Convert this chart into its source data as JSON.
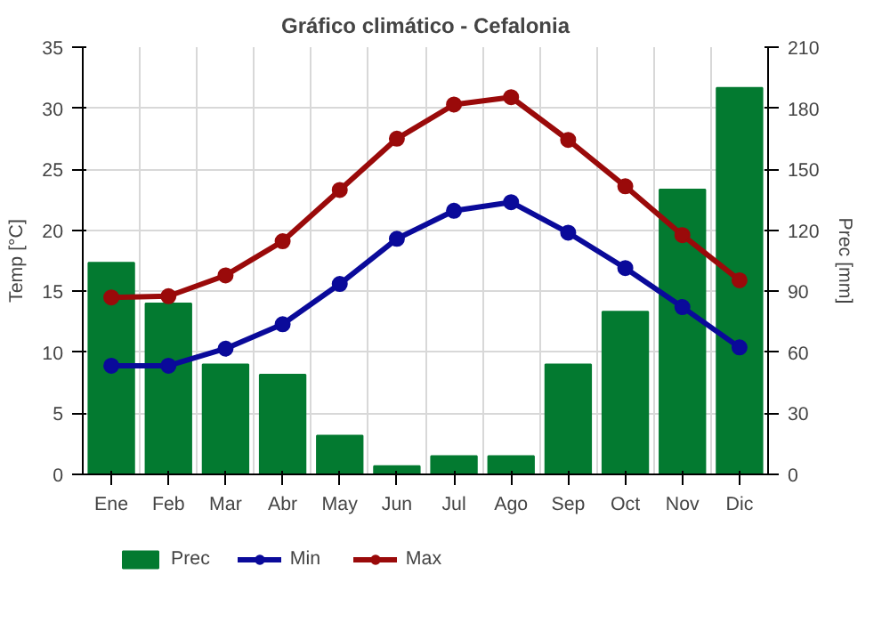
{
  "chart_data": {
    "type": "bar",
    "title": "Gráfico climático - Cefalonia",
    "ylabel": "Temp [°C]",
    "y2label": "Prec [mm]",
    "categories": [
      "Ene",
      "Feb",
      "Mar",
      "Abr",
      "May",
      "Jun",
      "Jul",
      "Ago",
      "Sep",
      "Oct",
      "Nov",
      "Dic"
    ],
    "series": [
      {
        "name": "Prec",
        "axis": "y2",
        "color": "#037a30",
        "values": [
          104,
          84,
          54,
          49,
          19,
          4,
          9,
          9,
          54,
          80,
          140,
          190
        ]
      },
      {
        "name": "Min",
        "type": "line",
        "color": "#0a0a9a",
        "marker": "circle",
        "values": [
          8.9,
          8.9,
          10.3,
          12.3,
          15.6,
          19.3,
          21.6,
          22.3,
          19.8,
          16.9,
          13.7,
          10.4
        ]
      },
      {
        "name": "Max",
        "type": "line",
        "color": "#9a0a0a",
        "marker": "circle",
        "values": [
          14.5,
          14.6,
          16.3,
          19.1,
          23.3,
          27.5,
          30.3,
          30.9,
          27.4,
          23.6,
          19.6,
          15.9
        ]
      }
    ],
    "ylim": [
      0,
      35
    ],
    "yticks": [
      0,
      5,
      10,
      15,
      20,
      25,
      30,
      35
    ],
    "y2lim": [
      0,
      210
    ],
    "y2ticks": [
      0,
      30,
      60,
      90,
      120,
      150,
      180,
      210
    ],
    "grid": true,
    "legend": "bottom"
  }
}
